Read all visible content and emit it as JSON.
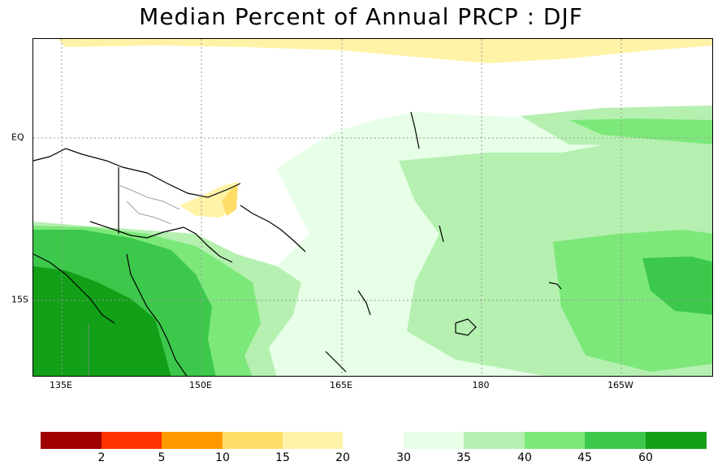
{
  "title": "Median Percent of Annual PRCP  :  DJF",
  "x_ticks": [
    "135E",
    "150E",
    "165E",
    "180",
    "165W"
  ],
  "y_ticks": [
    "EQ",
    "15S"
  ],
  "legend": {
    "dry_colors": [
      "#a00000",
      "#ff3300",
      "#ff9900",
      "#ffdd66",
      "#fff3a8"
    ],
    "dry_labels": [
      "2",
      "5",
      "10",
      "15",
      "20"
    ],
    "wet_colors": [
      "#e6ffe6",
      "#b5f0b0",
      "#7ce87a",
      "#3cc84a",
      "#12a018"
    ],
    "wet_labels": [
      "30",
      "35",
      "40",
      "45",
      "60"
    ]
  }
}
